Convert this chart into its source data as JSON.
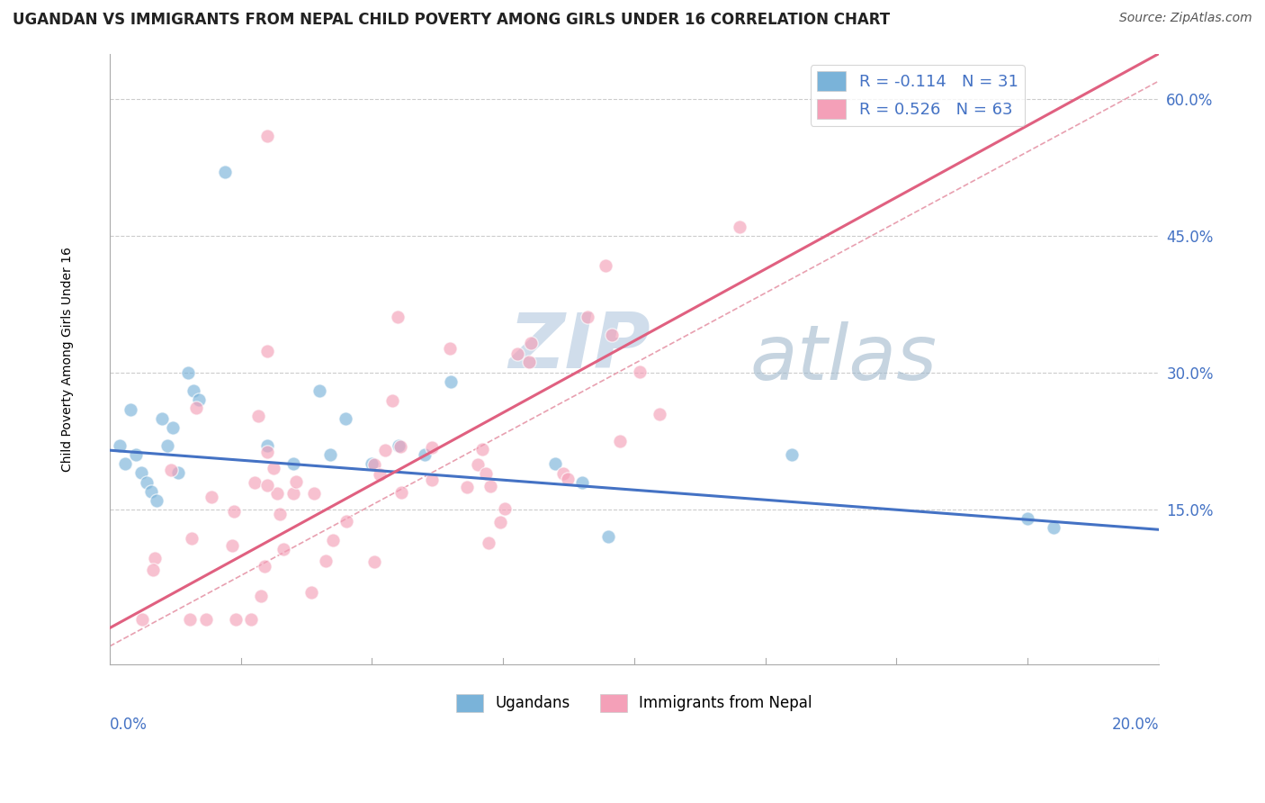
{
  "title": "UGANDAN VS IMMIGRANTS FROM NEPAL CHILD POVERTY AMONG GIRLS UNDER 16 CORRELATION CHART",
  "source": "Source: ZipAtlas.com",
  "watermark_zip": "ZIP",
  "watermark_atlas": "atlas",
  "legend_line1": "R = -0.114   N = 31",
  "legend_line2": "R = 0.526   N = 63",
  "ugandan_color": "#7ab3d9",
  "nepal_color": "#f4a0b8",
  "ugandan_trend_color": "#4472c4",
  "nepal_trend_color": "#e06080",
  "diagonal_color": "#e8a0b0",
  "background_color": "#ffffff",
  "grid_color": "#cccccc",
  "watermark_color": "#c8d8e8",
  "watermark_atlas_color": "#a0b8cc",
  "ylabel_color": "#4472c4",
  "xlim": [
    0.0,
    0.2
  ],
  "ylim": [
    -0.02,
    0.65
  ],
  "yticks": [
    0.15,
    0.3,
    0.45,
    0.6
  ],
  "ytick_labels": [
    "15.0%",
    "30.0%",
    "45.0%",
    "60.0%"
  ],
  "title_fontsize": 12,
  "source_fontsize": 10,
  "legend_fontsize": 13,
  "watermark_zip_fontsize": 62,
  "watermark_atlas_fontsize": 62,
  "scatter_size": 120,
  "scatter_alpha": 0.65
}
